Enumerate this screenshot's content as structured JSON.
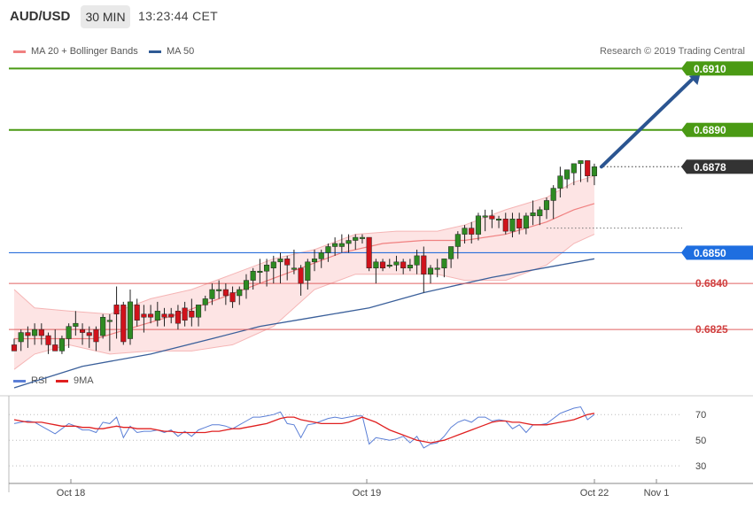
{
  "header": {
    "symbol": "AUD/USD",
    "timeframe": "30 MIN",
    "time": "13:23:44 CET"
  },
  "legend": {
    "bb_label": "MA 20 + Bollinger Bands",
    "ma50_label": "MA 50",
    "bb_color": "#f08080",
    "ma50_color": "#2f5a94"
  },
  "research": "Research © 2019 Trading Central",
  "rsi_legend": {
    "rsi_label": "RSI",
    "ma_label": "9MA",
    "rsi_color": "#5b7fd6",
    "ma_color": "#e02020"
  },
  "chart_data": [
    {
      "type": "candlestick",
      "symbol": "AUD/USD",
      "ylim": [
        0.6806,
        0.6915
      ],
      "levels": [
        {
          "value": "0.6910",
          "kind": "resistance",
          "color": "#4a9a14"
        },
        {
          "value": "0.6890",
          "kind": "resistance",
          "color": "#4a9a14"
        },
        {
          "value": "0.6878",
          "kind": "last",
          "color": "#333333"
        },
        {
          "value": "0.6850",
          "kind": "pivot",
          "color": "#2a6fdb"
        },
        {
          "value": "0.6840",
          "kind": "support",
          "color": "#e06060"
        },
        {
          "value": "0.6825",
          "kind": "support",
          "color": "#e06060"
        }
      ],
      "x_ticks": [
        "Oct 18",
        "Oct 19",
        "Oct 22",
        "Nov 1"
      ],
      "candles": [
        [
          0.682,
          0.6822,
          0.6818,
          0.6818
        ],
        [
          0.6821,
          0.6825,
          0.6818,
          0.6824
        ],
        [
          0.6824,
          0.6826,
          0.6819,
          0.6823
        ],
        [
          0.6823,
          0.6827,
          0.682,
          0.6825
        ],
        [
          0.6825,
          0.6827,
          0.682,
          0.6823
        ],
        [
          0.6823,
          0.6824,
          0.6817,
          0.682
        ],
        [
          0.682,
          0.6825,
          0.6818,
          0.6818
        ],
        [
          0.6818,
          0.6823,
          0.6817,
          0.6822
        ],
        [
          0.6822,
          0.6827,
          0.6819,
          0.6826
        ],
        [
          0.6826,
          0.6831,
          0.6823,
          0.6827
        ],
        [
          0.6825,
          0.6827,
          0.682,
          0.6824
        ],
        [
          0.6824,
          0.6826,
          0.6819,
          0.6823
        ],
        [
          0.6825,
          0.6826,
          0.6818,
          0.6821
        ],
        [
          0.6823,
          0.683,
          0.6822,
          0.6829
        ],
        [
          0.6828,
          0.683,
          0.6818,
          0.6828
        ],
        [
          0.6833,
          0.6839,
          0.6822,
          0.683
        ],
        [
          0.6833,
          0.6834,
          0.682,
          0.6821
        ],
        [
          0.6822,
          0.6838,
          0.682,
          0.6834
        ],
        [
          0.6833,
          0.6835,
          0.6826,
          0.6828
        ],
        [
          0.683,
          0.6833,
          0.6824,
          0.6829
        ],
        [
          0.683,
          0.6833,
          0.6827,
          0.6829
        ],
        [
          0.6828,
          0.6834,
          0.6826,
          0.6831
        ],
        [
          0.683,
          0.6832,
          0.6826,
          0.6829
        ],
        [
          0.683,
          0.6832,
          0.6827,
          0.6829
        ],
        [
          0.6831,
          0.6833,
          0.6825,
          0.6827
        ],
        [
          0.6832,
          0.6834,
          0.6826,
          0.6828
        ],
        [
          0.6831,
          0.6835,
          0.6826,
          0.6829
        ],
        [
          0.6829,
          0.6832,
          0.6826,
          0.6833
        ],
        [
          0.6833,
          0.6836,
          0.6831,
          0.6835
        ],
        [
          0.6835,
          0.684,
          0.6833,
          0.6838
        ],
        [
          0.6838,
          0.6841,
          0.6835,
          0.6838
        ],
        [
          0.6838,
          0.684,
          0.6833,
          0.6836
        ],
        [
          0.6837,
          0.6839,
          0.6832,
          0.6834
        ],
        [
          0.6836,
          0.6839,
          0.6833,
          0.6838
        ],
        [
          0.6838,
          0.6843,
          0.6835,
          0.6841
        ],
        [
          0.6841,
          0.6845,
          0.6838,
          0.6844
        ],
        [
          0.6844,
          0.6848,
          0.684,
          0.6844
        ],
        [
          0.6844,
          0.6848,
          0.6839,
          0.6846
        ],
        [
          0.6845,
          0.6849,
          0.684,
          0.6847
        ],
        [
          0.6847,
          0.685,
          0.684,
          0.6848
        ],
        [
          0.6848,
          0.6849,
          0.6841,
          0.6846
        ],
        [
          0.6845,
          0.6851,
          0.6843,
          0.6845
        ],
        [
          0.6845,
          0.6846,
          0.6836,
          0.684
        ],
        [
          0.6841,
          0.6848,
          0.6838,
          0.6847
        ],
        [
          0.6847,
          0.6851,
          0.6844,
          0.6848
        ],
        [
          0.6848,
          0.6851,
          0.6845,
          0.685
        ],
        [
          0.685,
          0.6853,
          0.6847,
          0.6852
        ],
        [
          0.6852,
          0.6855,
          0.6849,
          0.6853
        ],
        [
          0.6852,
          0.6856,
          0.685,
          0.6853
        ],
        [
          0.6853,
          0.6856,
          0.685,
          0.6854
        ],
        [
          0.6854,
          0.6856,
          0.6851,
          0.6855
        ],
        [
          0.6855,
          0.6856,
          0.6853,
          0.6855
        ],
        [
          0.6855,
          0.6855,
          0.6844,
          0.6845
        ],
        [
          0.6845,
          0.6848,
          0.684,
          0.6847
        ],
        [
          0.6847,
          0.6848,
          0.6844,
          0.6845
        ],
        [
          0.6846,
          0.6848,
          0.6845,
          0.6846
        ],
        [
          0.6846,
          0.6849,
          0.6844,
          0.6847
        ],
        [
          0.6847,
          0.6848,
          0.6843,
          0.6845
        ],
        [
          0.6845,
          0.6848,
          0.6844,
          0.6846
        ],
        [
          0.6846,
          0.6851,
          0.6843,
          0.6849
        ],
        [
          0.6849,
          0.6852,
          0.6837,
          0.6843
        ],
        [
          0.6843,
          0.6846,
          0.684,
          0.6845
        ],
        [
          0.6845,
          0.6848,
          0.6842,
          0.6845
        ],
        [
          0.6845,
          0.6848,
          0.6842,
          0.6848
        ],
        [
          0.6848,
          0.6852,
          0.6845,
          0.6852
        ],
        [
          0.6852,
          0.6857,
          0.6848,
          0.6856
        ],
        [
          0.6856,
          0.6859,
          0.6853,
          0.6858
        ],
        [
          0.6858,
          0.686,
          0.6853,
          0.6856
        ],
        [
          0.6856,
          0.6863,
          0.6854,
          0.6862
        ],
        [
          0.6862,
          0.6864,
          0.6857,
          0.6862
        ],
        [
          0.6862,
          0.6864,
          0.6858,
          0.6861
        ],
        [
          0.6861,
          0.6862,
          0.6858,
          0.6861
        ],
        [
          0.6861,
          0.6863,
          0.6856,
          0.6857
        ],
        [
          0.6857,
          0.6863,
          0.6855,
          0.6861
        ],
        [
          0.6861,
          0.6863,
          0.6856,
          0.6858
        ],
        [
          0.6858,
          0.6863,
          0.6856,
          0.6862
        ],
        [
          0.6862,
          0.6867,
          0.6859,
          0.6863
        ],
        [
          0.6862,
          0.6865,
          0.6859,
          0.6864
        ],
        [
          0.6864,
          0.6868,
          0.6861,
          0.6867
        ],
        [
          0.6867,
          0.6872,
          0.6861,
          0.6871
        ],
        [
          0.6871,
          0.6878,
          0.6868,
          0.6875
        ],
        [
          0.6874,
          0.6877,
          0.6871,
          0.6877
        ],
        [
          0.6876,
          0.6879,
          0.6872,
          0.6879
        ],
        [
          0.6879,
          0.688,
          0.6873,
          0.688
        ],
        [
          0.688,
          0.688,
          0.6873,
          0.6875
        ],
        [
          0.6875,
          0.6879,
          0.6872,
          0.6878
        ]
      ],
      "ma50_curve": [
        [
          0,
          0.6806
        ],
        [
          10,
          0.6813
        ],
        [
          20,
          0.6817
        ],
        [
          29,
          0.6822
        ],
        [
          36,
          0.6826
        ],
        [
          44,
          0.6829
        ],
        [
          52,
          0.6832
        ],
        [
          60,
          0.6837
        ],
        [
          70,
          0.6842
        ],
        [
          80,
          0.6846
        ],
        [
          85,
          0.6848
        ]
      ],
      "bb_mid_curve": [
        [
          0,
          0.6822
        ],
        [
          6,
          0.6822
        ],
        [
          12,
          0.6822
        ],
        [
          18,
          0.6826
        ],
        [
          24,
          0.683
        ],
        [
          30,
          0.6835
        ],
        [
          36,
          0.684
        ],
        [
          42,
          0.6845
        ],
        [
          48,
          0.685
        ],
        [
          54,
          0.6853
        ],
        [
          60,
          0.6854
        ],
        [
          66,
          0.6854
        ],
        [
          72,
          0.6856
        ],
        [
          78,
          0.686
        ],
        [
          82,
          0.6864
        ],
        [
          85,
          0.6866
        ]
      ],
      "bb_upper_curve": [
        [
          0,
          0.6838
        ],
        [
          3,
          0.6832
        ],
        [
          8,
          0.6831
        ],
        [
          14,
          0.683
        ],
        [
          20,
          0.6835
        ],
        [
          26,
          0.6838
        ],
        [
          32,
          0.6843
        ],
        [
          38,
          0.6848
        ],
        [
          44,
          0.6851
        ],
        [
          50,
          0.6856
        ],
        [
          56,
          0.6857
        ],
        [
          62,
          0.6857
        ],
        [
          66,
          0.6859
        ],
        [
          72,
          0.6864
        ],
        [
          78,
          0.6868
        ],
        [
          82,
          0.6873
        ],
        [
          85,
          0.6875
        ]
      ],
      "bb_lower_curve": [
        [
          0,
          0.6812
        ],
        [
          3,
          0.6817
        ],
        [
          8,
          0.682
        ],
        [
          14,
          0.6817
        ],
        [
          20,
          0.6818
        ],
        [
          26,
          0.6818
        ],
        [
          32,
          0.682
        ],
        [
          38,
          0.6826
        ],
        [
          44,
          0.6838
        ],
        [
          50,
          0.6843
        ],
        [
          56,
          0.6843
        ],
        [
          62,
          0.6843
        ],
        [
          66,
          0.6841
        ],
        [
          72,
          0.6841
        ],
        [
          78,
          0.6846
        ],
        [
          82,
          0.6853
        ],
        [
          85,
          0.6856
        ]
      ],
      "projection": {
        "from": [
          85,
          0.6878
        ],
        "to": [
          100,
          0.691
        ]
      }
    },
    {
      "type": "line",
      "title": "RSI",
      "y_ticks": [
        "70",
        "50",
        "30"
      ],
      "ylim": [
        17,
        95
      ],
      "series": [
        {
          "name": "RSI",
          "values": [
            63,
            64,
            65,
            64,
            61,
            58,
            55,
            59,
            63,
            61,
            58,
            58,
            56,
            64,
            63,
            68,
            52,
            61,
            56,
            57,
            57,
            58,
            56,
            58,
            53,
            57,
            53,
            58,
            60,
            62,
            62,
            61,
            59,
            62,
            65,
            68,
            68,
            69,
            70,
            72,
            63,
            62,
            52,
            62,
            63,
            65,
            67,
            68,
            67,
            68,
            69,
            69,
            47,
            52,
            51,
            50,
            51,
            53,
            48,
            53,
            44,
            47,
            48,
            53,
            60,
            64,
            66,
            64,
            68,
            68,
            65,
            66,
            65,
            59,
            62,
            56,
            62,
            62,
            63,
            67,
            71,
            73,
            75,
            76,
            66,
            70
          ]
        },
        {
          "name": "9MA",
          "values": [
            66,
            65,
            64,
            64,
            64,
            63,
            62,
            61,
            61,
            61,
            60,
            60,
            59,
            59,
            60,
            61,
            60,
            60,
            59,
            59,
            59,
            58,
            57,
            57,
            56,
            56,
            56,
            56,
            56,
            57,
            57,
            58,
            59,
            59,
            60,
            61,
            62,
            63,
            65,
            67,
            68,
            68,
            66,
            65,
            64,
            63,
            63,
            63,
            63,
            64,
            66,
            68,
            66,
            64,
            61,
            58,
            56,
            54,
            52,
            50,
            49,
            48,
            49,
            50,
            52,
            54,
            56,
            58,
            60,
            62,
            64,
            65,
            65,
            64,
            64,
            63,
            62,
            62,
            62,
            63,
            64,
            65,
            66,
            68,
            70,
            71
          ]
        }
      ]
    }
  ]
}
